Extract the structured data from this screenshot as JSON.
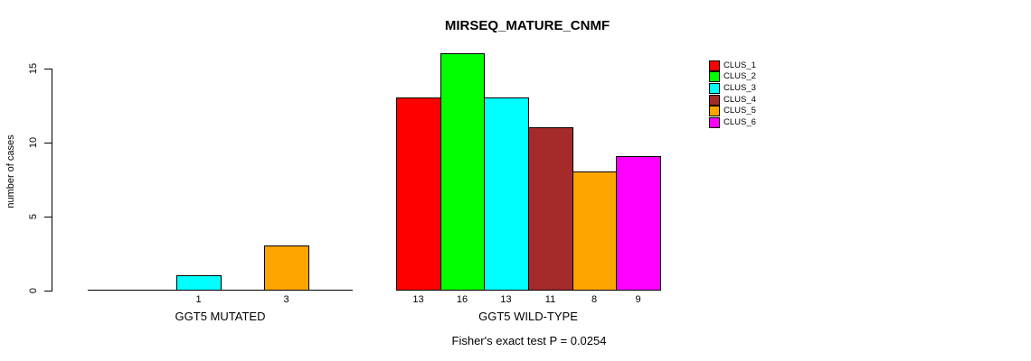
{
  "chart_data": {
    "type": "bar",
    "title": "MIRSEQ_MATURE_CNMF",
    "ylabel": "number of cases",
    "xlabel": "",
    "ylim": [
      0,
      16
    ],
    "y_ticks": [
      0,
      5,
      10,
      15
    ],
    "grid": false,
    "legend_position": "right",
    "series": [
      {
        "name": "CLUS_1",
        "color": "#FF0000"
      },
      {
        "name": "CLUS_2",
        "color": "#00FF00"
      },
      {
        "name": "CLUS_3",
        "color": "#00FFFF"
      },
      {
        "name": "CLUS_4",
        "color": "#A52A2A"
      },
      {
        "name": "CLUS_5",
        "color": "#FFA500"
      },
      {
        "name": "CLUS_6",
        "color": "#FF00FF"
      }
    ],
    "groups": [
      {
        "label": "GGT5 MUTATED",
        "values": [
          0,
          0,
          1,
          0,
          3,
          0
        ],
        "bar_labels": [
          "",
          "",
          "1",
          "",
          "3",
          ""
        ]
      },
      {
        "label": "GGT5 WILD-TYPE",
        "values": [
          13,
          16,
          13,
          11,
          8,
          9
        ],
        "bar_labels": [
          "13",
          "16",
          "13",
          "11",
          "8",
          "9"
        ]
      }
    ],
    "footnote": "Fisher's exact test P = 0.0254",
    "axis_color": "#000000",
    "background_color": "#FFFFFF"
  }
}
